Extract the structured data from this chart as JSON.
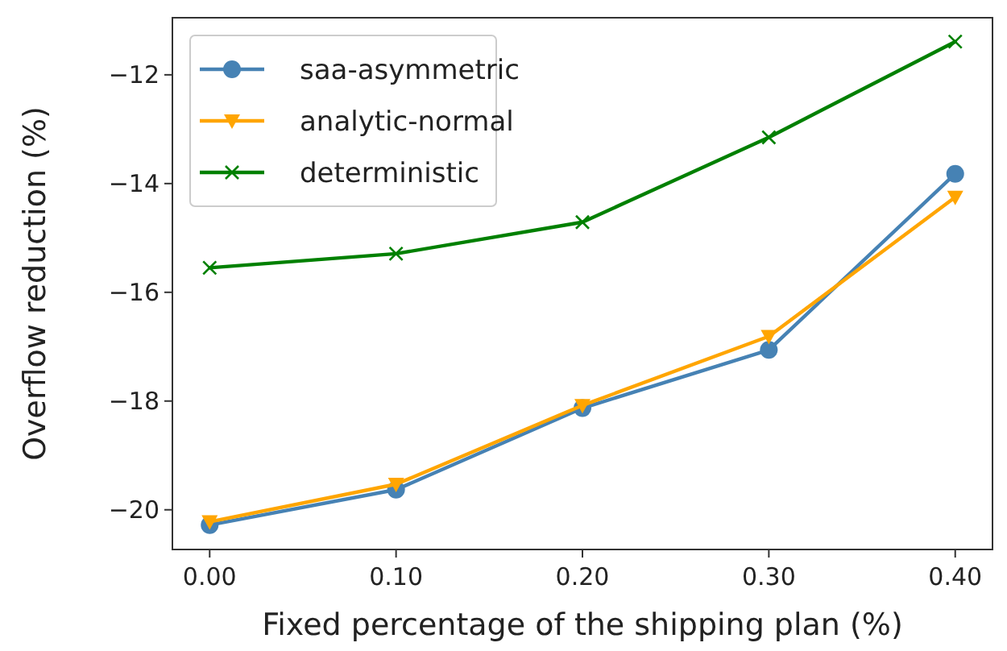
{
  "chart_data": {
    "type": "line",
    "xlabel": "Fixed percentage of the shipping plan (%)",
    "ylabel": "Overflow reduction (%)",
    "x": [
      0,
      0.1,
      0.2,
      0.3,
      0.4
    ],
    "xlim": [
      -0.02,
      0.42
    ],
    "xticks": [
      {
        "value": 0,
        "label": "0.00"
      },
      {
        "value": 0.1,
        "label": "0.10"
      },
      {
        "value": 0.2,
        "label": "0.20"
      },
      {
        "value": 0.3,
        "label": "0.30"
      },
      {
        "value": 0.4,
        "label": "0.40"
      }
    ],
    "ylim": [
      -20.73,
      -10.95
    ],
    "yticks": [
      {
        "value": -20,
        "label": "−20"
      },
      {
        "value": -18,
        "label": "−18"
      },
      {
        "value": -16,
        "label": "−16"
      },
      {
        "value": -14,
        "label": "−14"
      },
      {
        "value": -12,
        "label": "−12"
      }
    ],
    "grid": false,
    "legend": "top left",
    "line_style": "solid",
    "series": [
      {
        "name": "saa-asymmetric",
        "color": "#4682b4",
        "marker": "circle",
        "values": [
          -20.28,
          -19.63,
          -18.13,
          -17.06,
          -13.82
        ]
      },
      {
        "name": "analytic-normal",
        "color": "#ffa500",
        "marker": "triangle",
        "values": [
          -20.22,
          -19.53,
          -18.08,
          -16.81,
          -14.25
        ]
      },
      {
        "name": "deterministic",
        "color": "#008000",
        "marker": "cross",
        "values": [
          -15.55,
          -15.29,
          -14.71,
          -13.15,
          -11.39
        ]
      }
    ]
  }
}
